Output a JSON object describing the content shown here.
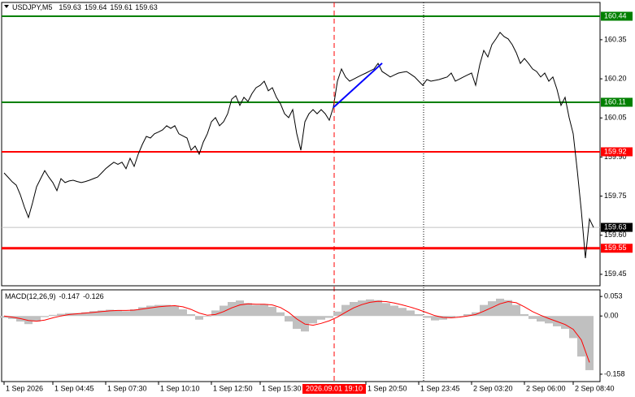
{
  "chart_data": [
    {
      "type": "line",
      "title": "USDJPY,M5",
      "ohlc": [
        159.63,
        159.64,
        159.61,
        159.63
      ],
      "xlim": [
        0,
        147
      ],
      "ylim": [
        159.406,
        160.493
      ],
      "xticks": [
        {
          "value": 0,
          "label": "1 Sep 2026"
        },
        {
          "value": 12,
          "label": "1 Sep 04:45"
        },
        {
          "value": 25,
          "label": "1 Sep 07:30"
        },
        {
          "value": 38,
          "label": "1 Sep 10:10"
        },
        {
          "value": 51,
          "label": "1 Sep 12:50"
        },
        {
          "value": 63,
          "label": "1 Sep 15:30"
        },
        {
          "value": 89,
          "label": "1 Sep 20:50"
        },
        {
          "value": 102,
          "label": "1 Sep 23:45"
        },
        {
          "value": 115,
          "label": "2 Sep 03:20"
        },
        {
          "value": 128,
          "label": "2 Sep 06:00"
        },
        {
          "value": 140,
          "label": "2 Sep 08:40"
        }
      ],
      "yticks": [
        160.35,
        {
          "value": 160.2,
          "label": "160.20"
        },
        160.05,
        {
          "value": 159.9,
          "label": "159.90"
        },
        159.75,
        {
          "value": 159.6,
          "label": "159.60"
        },
        159.45
      ],
      "series": [
        {
          "color": "#000000",
          "values": [
            159.839,
            159.822,
            159.805,
            159.792,
            159.755,
            159.708,
            159.668,
            159.724,
            159.786,
            159.817,
            159.848,
            159.823,
            159.802,
            159.771,
            159.817,
            159.802,
            159.808,
            159.811,
            159.806,
            159.802,
            159.806,
            159.811,
            159.817,
            159.823,
            159.839,
            159.855,
            159.868,
            159.88,
            159.872,
            159.88,
            159.855,
            159.895,
            159.864,
            159.911,
            159.948,
            159.979,
            159.973,
            159.989,
            159.996,
            160.004,
            160.02,
            160.01,
            160.02,
            159.989,
            159.981,
            159.973,
            159.926,
            159.942,
            159.911,
            159.957,
            159.989,
            160.035,
            160.051,
            160.02,
            160.035,
            160.066,
            160.122,
            160.135,
            160.098,
            160.129,
            160.113,
            160.144,
            160.166,
            160.175,
            160.191,
            160.154,
            160.166,
            160.129,
            160.104,
            160.066,
            160.051,
            160.082,
            159.989,
            159.926,
            160.035,
            160.066,
            160.082,
            160.066,
            160.082,
            160.066,
            160.041,
            160.091,
            160.191,
            160.238,
            160.207,
            160.191,
            160.199,
            160.207,
            160.215,
            160.222,
            160.23,
            160.238,
            160.259,
            160.228,
            160.218,
            160.207,
            160.215,
            160.222,
            160.225,
            160.228,
            160.218,
            160.207,
            160.191,
            160.175,
            160.197,
            160.191,
            160.194,
            160.197,
            160.202,
            160.207,
            160.222,
            160.191,
            160.199,
            160.207,
            160.215,
            160.222,
            160.175,
            160.253,
            160.309,
            160.284,
            160.331,
            160.353,
            160.378,
            160.362,
            160.353,
            160.331,
            160.3,
            160.259,
            160.278,
            160.259,
            160.238,
            160.228,
            160.207,
            160.222,
            160.191,
            160.207,
            160.16,
            160.098,
            160.129,
            160.051,
            159.989,
            159.848,
            159.693,
            159.512,
            159.662,
            159.63
          ]
        }
      ],
      "levels": [
        {
          "value": 160.44,
          "color": "#008000"
        },
        {
          "value": 160.11,
          "color": "#008000"
        },
        {
          "value": 159.92,
          "color": "#ff0000"
        },
        {
          "value": 159.55,
          "color": "#ff0000"
        }
      ],
      "bid": 159.63,
      "trendline": {
        "x": [
          81,
          93
        ],
        "values": [
          160.09,
          160.26
        ],
        "color": "#0000ff"
      },
      "crosshair": {
        "x": 81.2,
        "label": "2026.09.01 19:10",
        "color": "#ff0000"
      }
    },
    {
      "type": "macd",
      "title": "MACD(12,26,9)",
      "readout": [
        -0.147,
        -0.126
      ],
      "xlim": [
        0,
        73.5
      ],
      "ylim": [
        -0.178,
        0.071
      ],
      "yticks": [
        0.053,
        {
          "value": 0,
          "label": "0.00"
        },
        -0.158
      ],
      "series": [
        {
          "color": "#c0c0c0",
          "values": [
            -0.005,
            -0.008,
            -0.015,
            -0.022,
            -0.015,
            -0.003,
            0.003,
            0.006,
            0.008,
            0.008,
            0.01,
            0.013,
            0.015,
            0.017,
            0.016,
            0.013,
            0.018,
            0.024,
            0.028,
            0.03,
            0.03,
            0.028,
            0.018,
            0.005,
            -0.01,
            -0.002,
            0.015,
            0.028,
            0.038,
            0.042,
            0.035,
            0.03,
            0.032,
            0.025,
            0.01,
            -0.015,
            -0.035,
            -0.042,
            -0.02,
            -0.01,
            -0.005,
            0.012,
            0.03,
            0.038,
            0.042,
            0.045,
            0.043,
            0.035,
            0.028,
            0.022,
            0.015,
            0.005,
            -0.005,
            -0.012,
            -0.01,
            -0.005,
            0.0,
            0.005,
            0.01,
            0.03,
            0.04,
            0.047,
            0.043,
            0.03,
            0.005,
            -0.008,
            -0.015,
            -0.02,
            -0.028,
            -0.035,
            -0.06,
            -0.11,
            -0.147
          ]
        },
        {
          "color": "#ff0000",
          "values": [
            0.0,
            -0.003,
            -0.007,
            -0.012,
            -0.014,
            -0.011,
            -0.005,
            0.0,
            0.004,
            0.006,
            0.008,
            0.01,
            0.012,
            0.014,
            0.015,
            0.015,
            0.016,
            0.019,
            0.022,
            0.025,
            0.027,
            0.028,
            0.025,
            0.018,
            0.008,
            0.002,
            0.004,
            0.012,
            0.022,
            0.03,
            0.033,
            0.032,
            0.032,
            0.03,
            0.023,
            0.01,
            -0.008,
            -0.022,
            -0.025,
            -0.02,
            -0.013,
            -0.003,
            0.01,
            0.022,
            0.031,
            0.037,
            0.04,
            0.039,
            0.035,
            0.03,
            0.024,
            0.017,
            0.009,
            0.001,
            -0.004,
            -0.005,
            -0.003,
            0.0,
            0.004,
            0.013,
            0.023,
            0.033,
            0.039,
            0.036,
            0.025,
            0.012,
            0.002,
            -0.007,
            -0.015,
            -0.023,
            -0.036,
            -0.065,
            -0.126
          ]
        }
      ]
    }
  ]
}
